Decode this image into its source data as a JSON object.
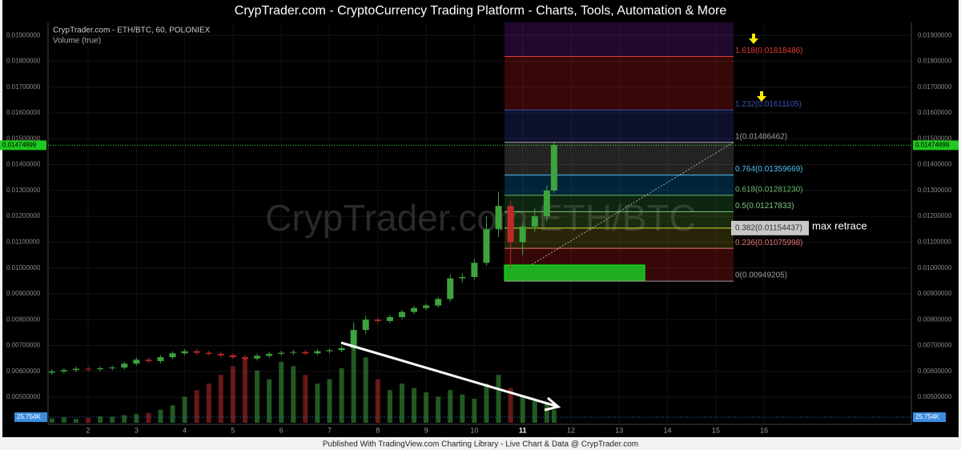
{
  "header": {
    "title": "CrypTrader.com  -  CryptoCurrency Trading Platform  -  Charts, Tools, Automation & More"
  },
  "footer": {
    "text": "Published With TradingView.com Charting Library - Live Chart & Data @ CrypTrader.com"
  },
  "chart_data": {
    "type": "candlestick",
    "title": "CrypTrader.com - ETH/BTC, 60, POLONIEX",
    "subtitle": "Volume (true)",
    "watermark": "CrypTrader.com ETH/BTC",
    "annotation": "max retrace",
    "up_color": "#3da33d",
    "down_color": "#c0292b",
    "xlim": [
      1.17,
      19.05
    ],
    "xticks": [
      2,
      3,
      4,
      5,
      6,
      7,
      8,
      9,
      10,
      11,
      12,
      13,
      14,
      15,
      16
    ],
    "ylim": [
      0.00395,
      0.0195
    ],
    "yticks": [
      {
        "value": 0.005,
        "label": "0.00500000"
      },
      {
        "value": 0.006,
        "label": "0.00600000"
      },
      {
        "value": 0.007,
        "label": "0.00700000"
      },
      {
        "value": 0.008,
        "label": "0.00800000"
      },
      {
        "value": 0.009,
        "label": "0.00900000"
      },
      {
        "value": 0.01,
        "label": "0.01000000"
      },
      {
        "value": 0.011,
        "label": "0.01100000"
      },
      {
        "value": 0.012,
        "label": "0.01200000"
      },
      {
        "value": 0.013,
        "label": "0.01300000"
      },
      {
        "value": 0.014,
        "label": "0.01400000"
      },
      {
        "value": 0.015,
        "label": "0.01500000"
      },
      {
        "value": 0.016,
        "label": "0.01600000"
      },
      {
        "value": 0.017,
        "label": "0.01700000"
      },
      {
        "value": 0.018,
        "label": "0.01800000"
      },
      {
        "value": 0.019,
        "label": "0.01900000"
      }
    ],
    "grid": true,
    "last_price": 0.01474899,
    "volume_lim": [
      0,
      500000
    ],
    "volume_last": {
      "value": 25754,
      "label": "25.754K"
    },
    "x": [
      1.25,
      1.5,
      1.75,
      2,
      2.25,
      2.5,
      2.75,
      3,
      3.25,
      3.5,
      3.75,
      4,
      4.25,
      4.5,
      4.75,
      5,
      5.25,
      5.5,
      5.75,
      6,
      6.25,
      6.5,
      6.75,
      7,
      7.25,
      7.5,
      7.75,
      8,
      8.25,
      8.5,
      8.75,
      9,
      9.25,
      9.5,
      9.75,
      10,
      10.25,
      10.5,
      10.75,
      11,
      11.25,
      11.5,
      11.65
    ],
    "open": [
      0.00595,
      0.006,
      0.00605,
      0.0061,
      0.00608,
      0.00612,
      0.00615,
      0.0063,
      0.00645,
      0.0064,
      0.00655,
      0.0067,
      0.00678,
      0.00672,
      0.00668,
      0.00662,
      0.00655,
      0.0065,
      0.0066,
      0.00668,
      0.00672,
      0.00675,
      0.0067,
      0.00678,
      0.00682,
      0.0069,
      0.0076,
      0.008,
      0.00795,
      0.0081,
      0.0083,
      0.00845,
      0.00855,
      0.0088,
      0.0096,
      0.00965,
      0.0102,
      0.0115,
      0.0124,
      0.011,
      0.0116,
      0.012,
      0.013
    ],
    "high": [
      0.00608,
      0.00613,
      0.00618,
      0.00618,
      0.0062,
      0.00623,
      0.00638,
      0.00653,
      0.00653,
      0.00663,
      0.00678,
      0.00686,
      0.00686,
      0.0068,
      0.00676,
      0.0067,
      0.00663,
      0.00668,
      0.00676,
      0.0068,
      0.00683,
      0.00683,
      0.00686,
      0.0069,
      0.00698,
      0.0079,
      0.00815,
      0.00808,
      0.00818,
      0.00838,
      0.00853,
      0.00863,
      0.00888,
      0.00975,
      0.0098,
      0.01035,
      0.012,
      0.01295,
      0.0126,
      0.01175,
      0.0123,
      0.0132,
      0.01485
    ],
    "low": [
      0.00587,
      0.00592,
      0.00597,
      0.006,
      0.006,
      0.00604,
      0.00607,
      0.00622,
      0.00632,
      0.00632,
      0.00647,
      0.00662,
      0.00664,
      0.0066,
      0.00654,
      0.00647,
      0.00642,
      0.00642,
      0.00652,
      0.0066,
      0.00664,
      0.00662,
      0.00662,
      0.0067,
      0.00674,
      0.0068,
      0.00745,
      0.00785,
      0.00787,
      0.00802,
      0.00822,
      0.00837,
      0.00847,
      0.0087,
      0.00945,
      0.00955,
      0.0101,
      0.0112,
      0.01,
      0.0105,
      0.0114,
      0.0118,
      0.0129
    ],
    "close": [
      0.006,
      0.00605,
      0.0061,
      0.00608,
      0.00612,
      0.00615,
      0.0063,
      0.00645,
      0.0064,
      0.00655,
      0.0067,
      0.00678,
      0.00672,
      0.00668,
      0.00662,
      0.00655,
      0.0065,
      0.0066,
      0.00668,
      0.00672,
      0.00675,
      0.0067,
      0.00678,
      0.00682,
      0.0069,
      0.0076,
      0.008,
      0.00795,
      0.0081,
      0.0083,
      0.00845,
      0.00855,
      0.0088,
      0.0096,
      0.00965,
      0.0102,
      0.0115,
      0.0124,
      0.011,
      0.0116,
      0.012,
      0.013,
      0.01475
    ],
    "volume": [
      20000,
      25000,
      18000,
      22000,
      30000,
      28000,
      35000,
      40000,
      45000,
      60000,
      80000,
      120000,
      150000,
      180000,
      220000,
      260000,
      300000,
      240000,
      200000,
      280000,
      260000,
      220000,
      180000,
      200000,
      250000,
      420000,
      300000,
      200000,
      150000,
      180000,
      160000,
      140000,
      120000,
      150000,
      130000,
      110000,
      180000,
      220000,
      160000,
      120000,
      100000,
      90000,
      60000
    ],
    "fib_levels": [
      {
        "price": 0.01818486,
        "label": "1.618(0.01818486)",
        "color": "#e53935",
        "zone": "#6a1b9a"
      },
      {
        "price": 0.01611105,
        "label": "1.232(0.01611105)",
        "color": "#3f51b5",
        "zone": "#b71c1c"
      },
      {
        "price": 0.01486462,
        "label": "1(0.01486462)",
        "color": "#9e9e9e",
        "zone": "#283593"
      },
      {
        "price": 0.01359669,
        "label": "0.764(0.01359669)",
        "color": "#4fc3f7",
        "zone": "#757575"
      },
      {
        "price": 0.0128123,
        "label": "0.618(0.01281230)",
        "color": "#66bb6a",
        "zone": "#0277bd"
      },
      {
        "price": 0.01217833,
        "label": "0.5(0.01217833)",
        "color": "#81c784",
        "zone": "#2e7d32"
      },
      {
        "price": 0.01154437,
        "label": "0.382(0.01154437)",
        "color": "#cddc39",
        "zone": "#558b2f"
      },
      {
        "price": 0.01075998,
        "label": "0.236(0.01075998)",
        "color": "#e57373",
        "zone": "#827717"
      },
      {
        "price": 0.00949205,
        "label": "0(0.00949205)",
        "color": "#9e9e9e",
        "zone": "#b71c1c"
      }
    ]
  }
}
